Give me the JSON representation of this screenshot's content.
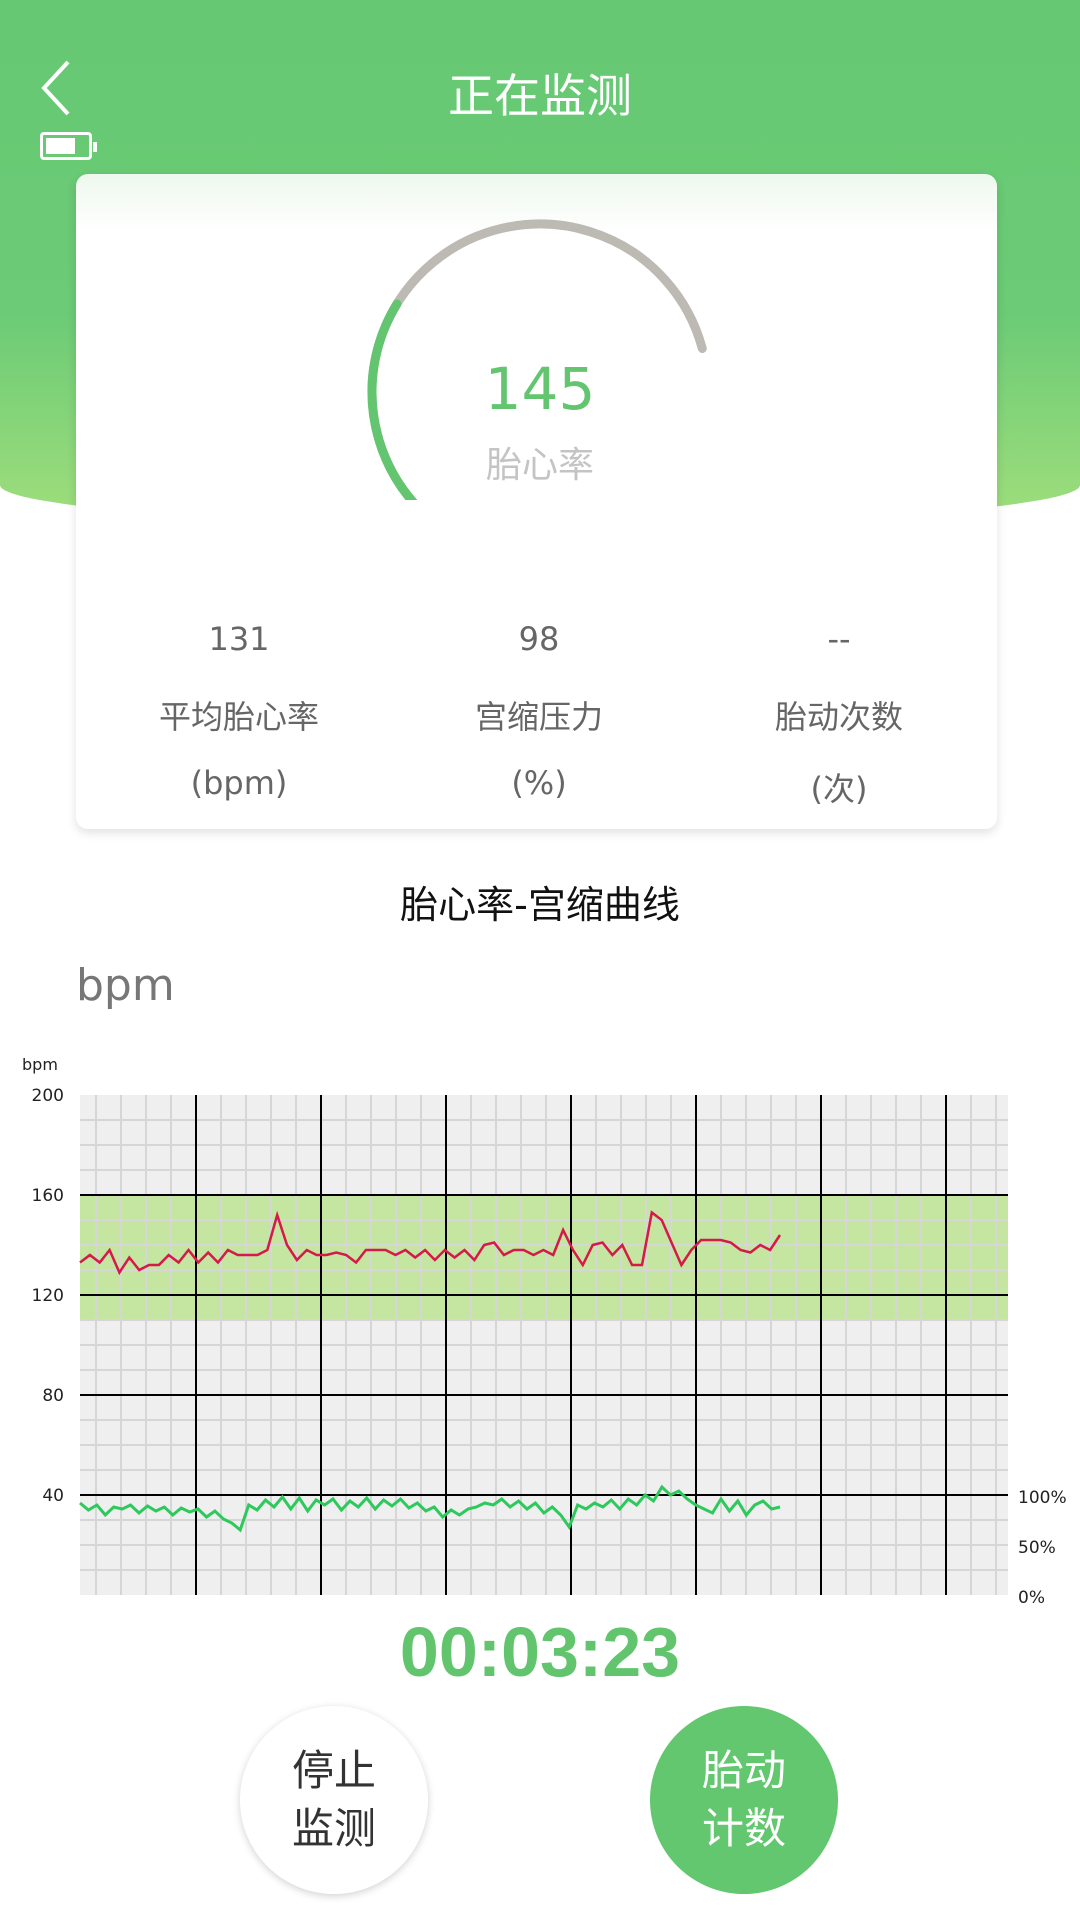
{
  "header": {
    "title": "正在监测",
    "back_icon": "chevron-left-icon",
    "battery_icon": "battery-icon",
    "battery_level": 0.7
  },
  "gauge": {
    "value": "145",
    "label": "胎心率",
    "fill_fraction": 0.42,
    "color": "#63c56f",
    "track_color": "#bdb9b3"
  },
  "stats": [
    {
      "value": "131",
      "label": "平均胎心率",
      "unit": "(bpm)"
    },
    {
      "value": "98",
      "label": "宫缩压力",
      "unit": "(%)"
    },
    {
      "value": "--",
      "label": "胎动次数",
      "unit": "(次)"
    }
  ],
  "section_title": "胎心率-宫缩曲线",
  "unit_label": "bpm",
  "chart_data": {
    "type": "line",
    "ylabel": "bpm",
    "ylim": [
      0,
      200
    ],
    "yticks": [
      "200",
      "160",
      "120",
      "80",
      "40"
    ],
    "yticks_right": [
      "100%",
      "50%",
      "0%"
    ],
    "normal_band": [
      110,
      160
    ],
    "grid": true,
    "colors": {
      "fhr": "#d6184a",
      "toco": "#2ec95c",
      "band": "#c4e6a0",
      "bg": "#efefef"
    },
    "fhr": [
      133,
      136,
      133,
      138,
      129,
      135,
      130,
      132,
      132,
      136,
      133,
      138,
      133,
      137,
      133,
      138,
      136,
      136,
      136,
      138,
      152,
      140,
      134,
      138,
      136,
      136,
      137,
      136,
      133,
      138,
      138,
      138,
      136,
      138,
      135,
      138,
      134,
      138,
      135,
      138,
      134,
      140,
      141,
      136,
      138,
      138,
      136,
      138,
      136,
      146,
      138,
      132,
      140,
      141,
      136,
      140,
      132,
      132,
      153,
      150,
      141,
      132,
      138,
      142,
      142,
      142,
      141,
      138,
      137,
      140,
      138,
      144
    ],
    "toco_percent": [
      92,
      85,
      90,
      80,
      88,
      86,
      90,
      82,
      89,
      84,
      88,
      80,
      87,
      83,
      86,
      78,
      84,
      76,
      72,
      65,
      90,
      85,
      95,
      88,
      98,
      86,
      97,
      84,
      95,
      90,
      96,
      85,
      94,
      88,
      97,
      86,
      95,
      89,
      96,
      87,
      92,
      84,
      88,
      78,
      85,
      80,
      86,
      88,
      92,
      90,
      96,
      88,
      94,
      86,
      92,
      82,
      88,
      80,
      68,
      90,
      86,
      92,
      88,
      95,
      86,
      96,
      90,
      100,
      94,
      108,
      100,
      104,
      96,
      90,
      86,
      82,
      96,
      84,
      94,
      80,
      90,
      94,
      86,
      88
    ]
  },
  "timer": "00:03:23",
  "buttons": {
    "stop": [
      "停止",
      "监测"
    ],
    "kick": [
      "胎动",
      "计数"
    ]
  }
}
